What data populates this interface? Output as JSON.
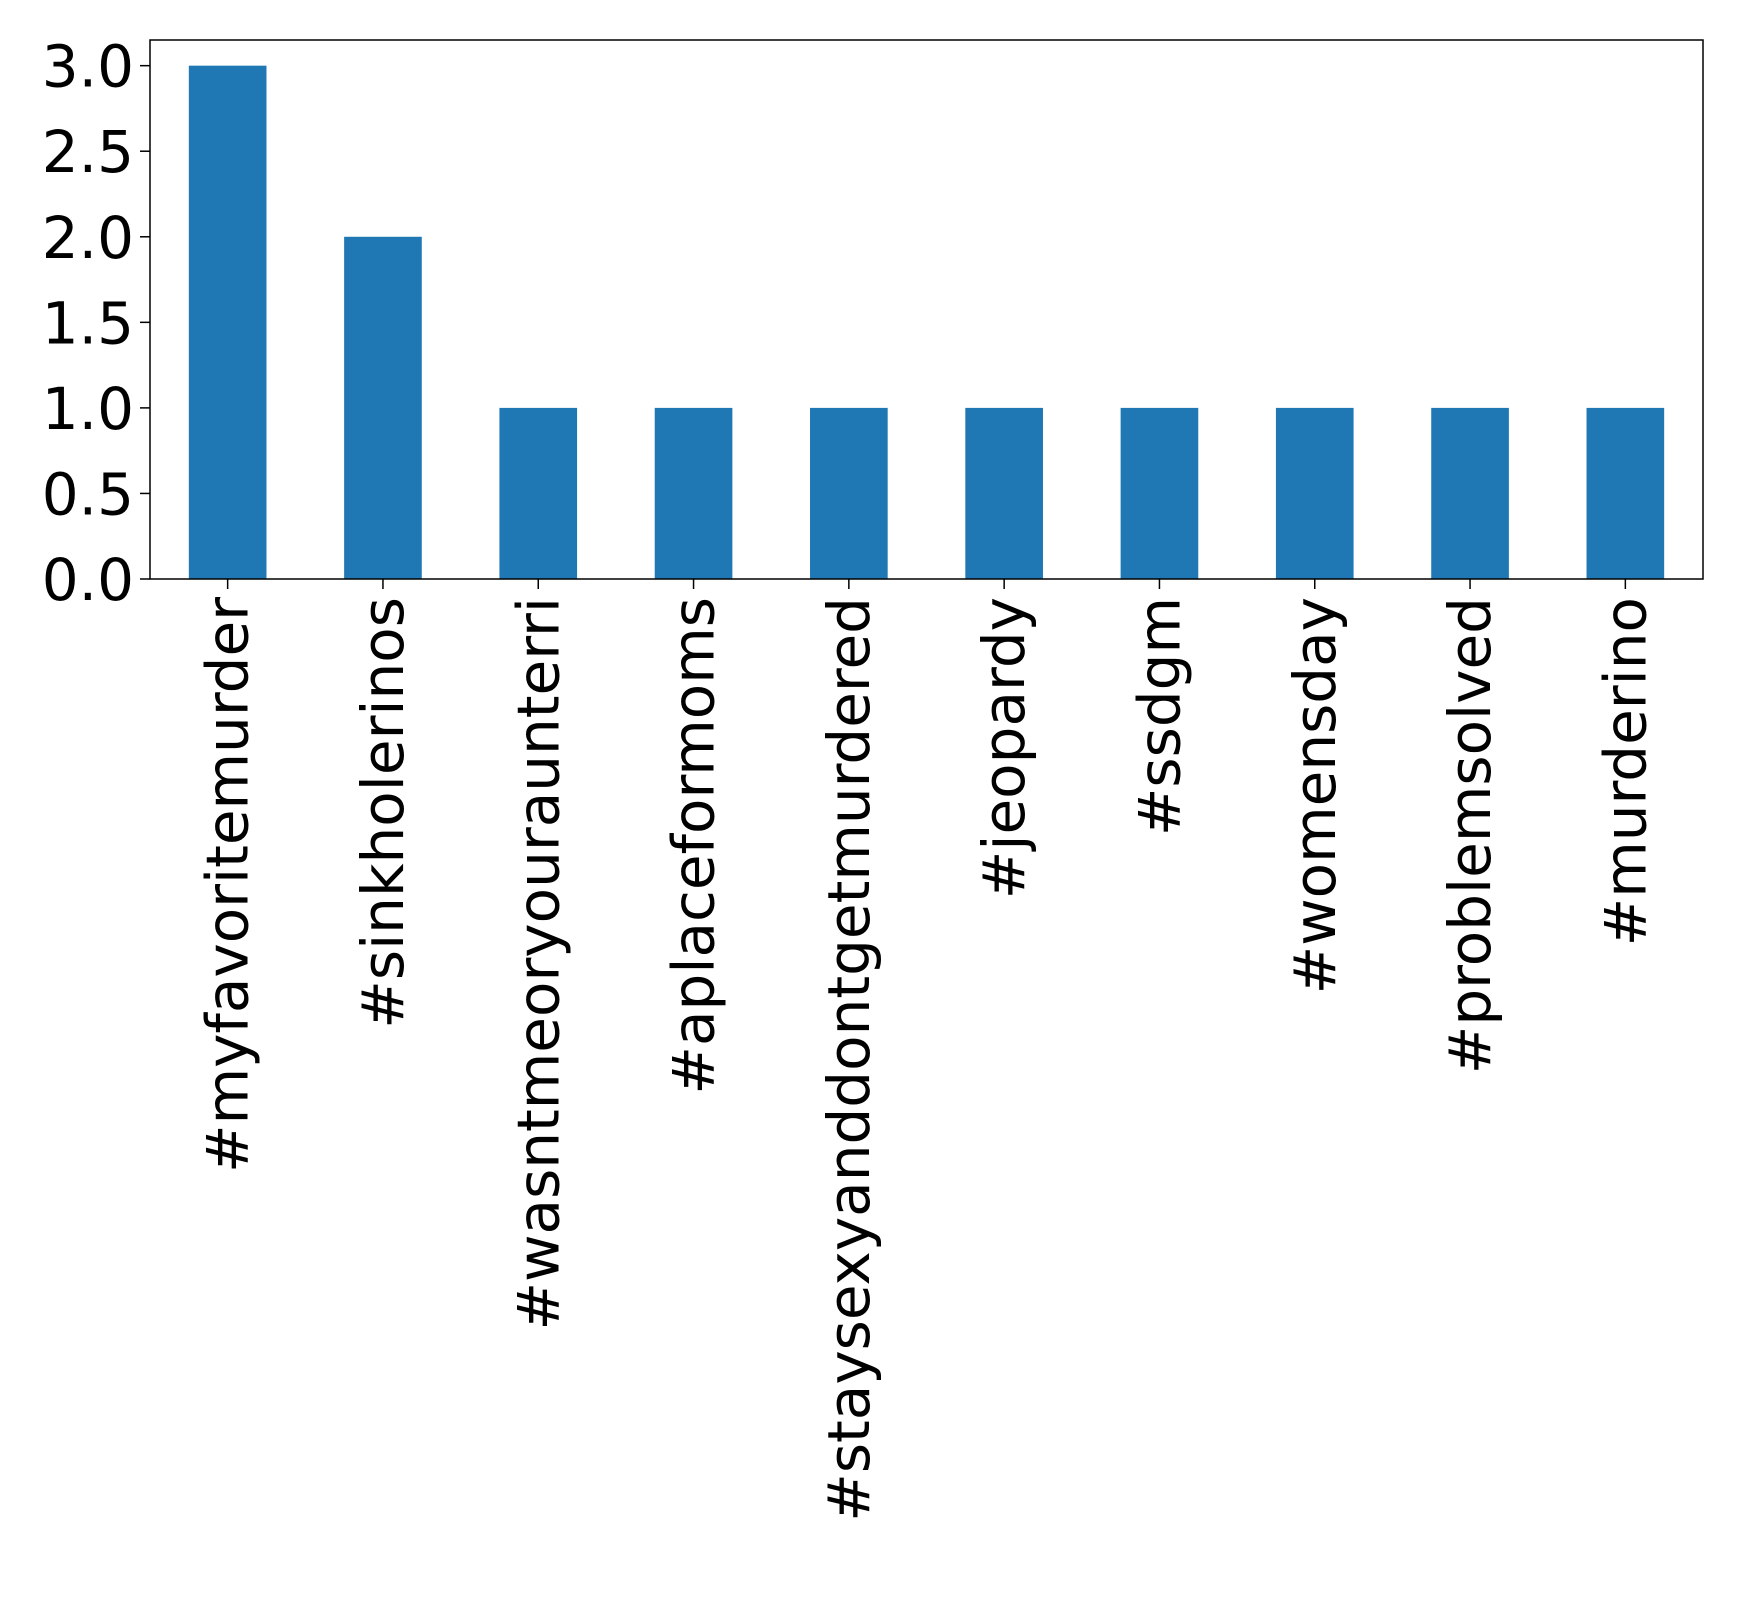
{
  "chart_data": {
    "type": "bar",
    "categories": [
      "#myfavoritemurder",
      "#sinkholerinos",
      "#wasntmeoryouraunterri",
      "#aplaceformoms",
      "#staysexyanddontgetmurdered",
      "#jeopardy",
      "#ssdgm",
      "#womensday",
      "#problemsolved",
      "#murderino"
    ],
    "values": [
      3,
      2,
      1,
      1,
      1,
      1,
      1,
      1,
      1,
      1
    ],
    "title": "",
    "xlabel": "",
    "ylabel": "",
    "ylim": [
      0,
      3.15
    ],
    "yticks": [
      0.0,
      0.5,
      1.0,
      1.5,
      2.0,
      2.5,
      3.0
    ],
    "ytick_labels": [
      "0.0",
      "0.5",
      "1.0",
      "1.5",
      "2.0",
      "2.5",
      "3.0"
    ],
    "grid": false,
    "legend": "none",
    "bar_color": "#1f77b4"
  }
}
